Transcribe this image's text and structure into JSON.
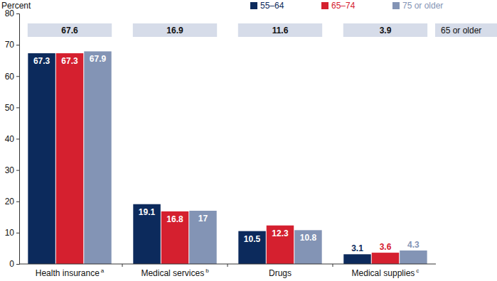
{
  "chart_data": {
    "type": "bar",
    "y_label": "Percent",
    "categories": [
      "Health insurance",
      "Medical services",
      "Drugs",
      "Medical supplies"
    ],
    "category_footnotes": [
      "a",
      "b",
      null,
      "c"
    ],
    "series": [
      {
        "name": "55–64",
        "color": "#0c2a5c",
        "values": [
          67.3,
          19.1,
          10.5,
          3.1
        ]
      },
      {
        "name": "65–74",
        "color": "#d5202f",
        "values": [
          67.3,
          16.8,
          12.3,
          3.6
        ]
      },
      {
        "name": "75 or older",
        "color": "#8394b5",
        "values": [
          67.9,
          17.0,
          10.8,
          4.3
        ]
      }
    ],
    "summary": {
      "name": "65 or older",
      "values": [
        67.6,
        16.9,
        11.6,
        3.9
      ]
    },
    "ylim": [
      0,
      80
    ],
    "yticks": [
      0,
      10,
      20,
      30,
      40,
      50,
      60,
      70,
      80
    ],
    "grid": false,
    "legend": "top-right",
    "data_labels": true
  }
}
